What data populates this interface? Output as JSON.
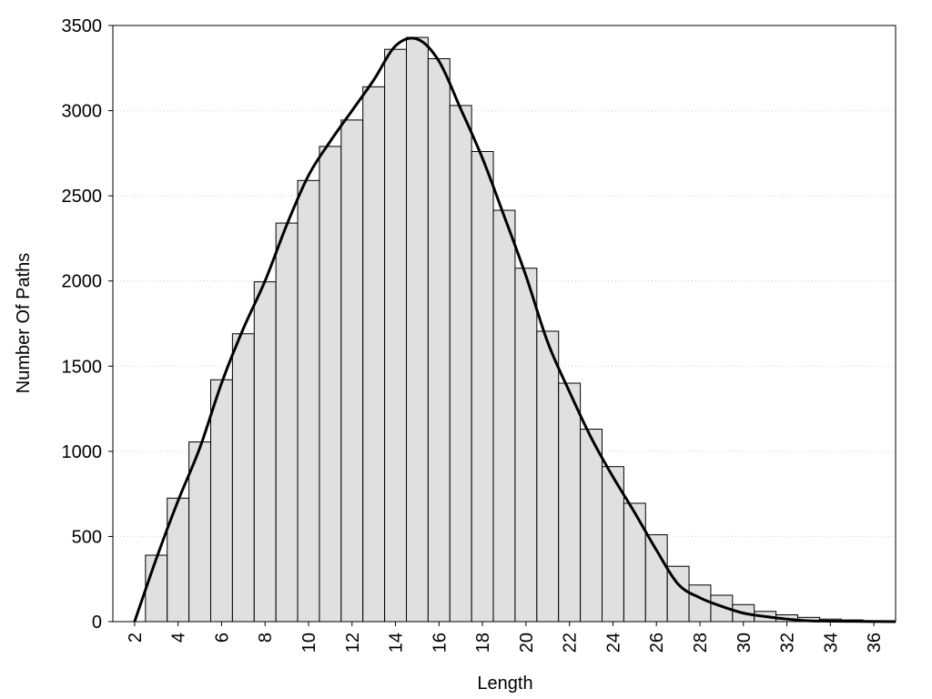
{
  "chart_data": {
    "type": "histogram",
    "xlabel": "Length",
    "ylabel": "Number Of Paths",
    "bins": [
      2.5,
      3.5,
      4.5,
      5.5,
      6.5,
      7.5,
      8.5,
      9.5,
      10.5,
      11.5,
      12.5,
      13.5,
      14.5,
      15.5,
      16.5,
      17.5,
      18.5,
      19.5,
      20.5,
      21.5,
      22.5,
      23.5,
      24.5,
      25.5,
      26.5,
      27.5,
      28.5,
      29.5,
      30.5,
      31.5,
      32.5,
      33.5,
      34.5,
      35.5,
      36.5
    ],
    "counts": [
      390,
      725,
      1055,
      1420,
      1690,
      1995,
      2340,
      2590,
      2790,
      2945,
      3140,
      3360,
      3430,
      3305,
      3030,
      2760,
      2415,
      2075,
      1705,
      1400,
      1130,
      910,
      695,
      510,
      325,
      215,
      155,
      100,
      60,
      40,
      25,
      15,
      10,
      5
    ],
    "color": "#e0e0e0",
    "line": {
      "x": [
        2,
        3,
        4,
        5,
        6,
        7,
        8,
        9,
        10,
        11,
        12,
        13,
        14,
        15,
        16,
        17,
        18,
        19,
        20,
        21,
        22,
        23,
        24,
        25,
        26,
        27,
        28,
        29,
        30,
        31,
        32,
        33,
        34,
        35,
        36,
        37
      ],
      "values": [
        0,
        370,
        710,
        1020,
        1400,
        1720,
        2000,
        2330,
        2620,
        2820,
        3000,
        3180,
        3380,
        3420,
        3290,
        3010,
        2720,
        2380,
        2030,
        1640,
        1350,
        1080,
        850,
        640,
        420,
        220,
        140,
        90,
        50,
        30,
        15,
        5,
        3,
        2,
        1,
        0
      ],
      "color": "#000000"
    },
    "xlim": [
      1,
      37
    ],
    "ylim": [
      0,
      3500
    ],
    "xticks": [
      2,
      4,
      6,
      8,
      10,
      12,
      14,
      16,
      18,
      20,
      22,
      24,
      26,
      28,
      30,
      32,
      34,
      36
    ],
    "yticks": [
      0,
      500,
      1000,
      1500,
      2000,
      2500,
      3000,
      3500
    ],
    "grid": true
  }
}
